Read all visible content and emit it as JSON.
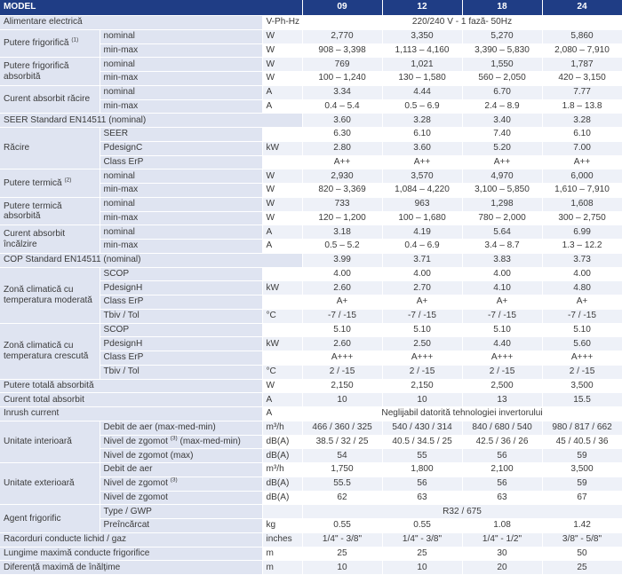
{
  "header": {
    "model": "MODEL",
    "units": [
      "09",
      "12",
      "18",
      "24"
    ]
  },
  "rows": [
    {
      "group": "Alimentare electrică",
      "sub": "",
      "unit": "V-Ph-Hz",
      "merged": "220/240 V - 1 fază- 50Hz"
    },
    {
      "group": "Putere frigorifică",
      "group_sup": "(1)",
      "sub": "nominal",
      "unit": "W",
      "values": [
        "2,770",
        "3,350",
        "5,270",
        "5,860"
      ]
    },
    {
      "sub": "min-max",
      "unit": "W",
      "values": [
        "908 – 3,398",
        "1,113 – 4,160",
        "3,390 – 5,830",
        "2,080 – 7,910"
      ]
    },
    {
      "group": "Putere frigorifică absorbită",
      "sub": "nominal",
      "unit": "W",
      "values": [
        "769",
        "1,021",
        "1,550",
        "1,787"
      ]
    },
    {
      "sub": "min-max",
      "unit": "W",
      "values": [
        "100 – 1,240",
        "130 – 1,580",
        "560 – 2,050",
        "420 – 3,150"
      ]
    },
    {
      "group": "Curent absorbit răcire",
      "sub": "nominal",
      "unit": "A",
      "values": [
        "3.34",
        "4.44",
        "6.70",
        "7.77"
      ]
    },
    {
      "sub": "min-max",
      "unit": "A",
      "values": [
        "0.4 – 5.4",
        "0.5 – 6.9",
        "2.4 – 8.9",
        "1.8 – 13.8"
      ]
    },
    {
      "group": "SEER Standard EN14511 (nominal)",
      "values": [
        "3.60",
        "3.28",
        "3.40",
        "3.28"
      ]
    },
    {
      "group": "Răcire",
      "sub": "SEER",
      "unit": "",
      "values": [
        "6.30",
        "6.10",
        "7.40",
        "6.10"
      ]
    },
    {
      "sub": "PdesignC",
      "unit": "kW",
      "values": [
        "2.80",
        "3.60",
        "5.20",
        "7.00"
      ]
    },
    {
      "sub": "Class ErP",
      "unit": "",
      "values": [
        "A++",
        "A++",
        "A++",
        "A++"
      ]
    },
    {
      "group": "Putere termică",
      "group_sup": "(2)",
      "sub": "nominal",
      "unit": "W",
      "values": [
        "2,930",
        "3,570",
        "4,970",
        "6,000"
      ]
    },
    {
      "sub": "min-max",
      "unit": "W",
      "values": [
        "820 – 3,369",
        "1,084 – 4,220",
        "3,100 – 5,850",
        "1,610 – 7,910"
      ]
    },
    {
      "group": "Putere termică absorbită",
      "sub": "nominal",
      "unit": "W",
      "values": [
        "733",
        "963",
        "1,298",
        "1,608"
      ]
    },
    {
      "sub": "min-max",
      "unit": "W",
      "values": [
        "120 – 1,200",
        "100 – 1,680",
        "780 – 2,000",
        "300 – 2,750"
      ]
    },
    {
      "group": "Curent absorbit încălzire",
      "sub": "nominal",
      "unit": "A",
      "values": [
        "3.18",
        "4.19",
        "5.64",
        "6.99"
      ]
    },
    {
      "sub": "min-max",
      "unit": "A",
      "values": [
        "0.5 – 5.2",
        "0.4 – 6.9",
        "3.4 – 8.7",
        "1.3 – 12.2"
      ]
    },
    {
      "group": "COP Standard EN14511 (nominal)",
      "values": [
        "3.99",
        "3.71",
        "3.83",
        "3.73"
      ]
    },
    {
      "group": "Zonă climatică cu temperatura moderată",
      "sub": "SCOP",
      "unit": "",
      "values": [
        "4.00",
        "4.00",
        "4.00",
        "4.00"
      ]
    },
    {
      "sub": "PdesignH",
      "unit": "kW",
      "values": [
        "2.60",
        "2.70",
        "4.10",
        "4.80"
      ]
    },
    {
      "sub": "Class ErP",
      "unit": "",
      "values": [
        "A+",
        "A+",
        "A+",
        "A+"
      ]
    },
    {
      "sub": "Tbiv / Tol",
      "unit": "°C",
      "values": [
        "-7 / -15",
        "-7 / -15",
        "-7 / -15",
        "-7 / -15"
      ]
    },
    {
      "group": "Zonă climatică cu temperatura crescută",
      "sub": "SCOP",
      "unit": "",
      "values": [
        "5.10",
        "5.10",
        "5.10",
        "5.10"
      ]
    },
    {
      "sub": "PdesignH",
      "unit": "kW",
      "values": [
        "2.60",
        "2.50",
        "4.40",
        "5.60"
      ]
    },
    {
      "sub": "Class ErP",
      "unit": "",
      "values": [
        "A+++",
        "A+++",
        "A+++",
        "A+++"
      ]
    },
    {
      "sub": "Tbiv / Tol",
      "unit": "°C",
      "values": [
        "2 / -15",
        "2 / -15",
        "2 / -15",
        "2 / -15"
      ]
    },
    {
      "group": "Putere totală absorbită",
      "unit": "W",
      "values": [
        "2,150",
        "2,150",
        "2,500",
        "3,500"
      ]
    },
    {
      "group": "Curent total absorbit",
      "unit": "A",
      "values": [
        "10",
        "10",
        "13",
        "15.5"
      ]
    },
    {
      "group": "Inrush current",
      "unit": "A",
      "merged": "Neglijabil datorită tehnologiei invertorului"
    },
    {
      "group": "Unitate interioară",
      "sub": "Debit de aer (max-med-min)",
      "unit": "m³/h",
      "values": [
        "466 / 360 / 325",
        "540 / 430 / 314",
        "840 / 680 / 540",
        "980 / 817 / 662"
      ]
    },
    {
      "sub": "Nivel de zgomot",
      "sub_sup": "(3)",
      "sub_after": "(max-med-min)",
      "unit": "dB(A)",
      "values": [
        "38.5 / 32 / 25",
        "40.5 / 34.5 / 25",
        "42.5 / 36 / 26",
        "45 / 40.5 / 36"
      ]
    },
    {
      "sub": "Nivel de zgomot (max)",
      "unit": "dB(A)",
      "values": [
        "54",
        "55",
        "56",
        "59"
      ]
    },
    {
      "group": "Unitate exterioară",
      "sub": "Debit de aer",
      "unit": "m³/h",
      "values": [
        "1,750",
        "1,800",
        "2,100",
        "3,500"
      ]
    },
    {
      "sub": "Nivel de zgomot",
      "sub_sup": "(3)",
      "unit": "dB(A)",
      "values": [
        "55.5",
        "56",
        "56",
        "59"
      ]
    },
    {
      "sub": "Nivel de zgomot",
      "unit": "dB(A)",
      "values": [
        "62",
        "63",
        "63",
        "67"
      ]
    },
    {
      "group": "Agent frigorific",
      "sub": "Type / GWP",
      "unit": "",
      "merged": "R32 / 675"
    },
    {
      "sub": "Preîncărcat",
      "unit": "kg",
      "values": [
        "0.55",
        "0.55",
        "1.08",
        "1.42"
      ]
    },
    {
      "group": "Racorduri conducte lichid / gaz",
      "unit": "inches",
      "values": [
        "1/4\" - 3/8\"",
        "1/4\" - 3/8\"",
        "1/4\" - 1/2\"",
        "3/8\" - 5/8\""
      ]
    },
    {
      "group": "Lungime maximă conducte frigorifice",
      "unit": "m",
      "values": [
        "25",
        "25",
        "30",
        "50"
      ]
    },
    {
      "group": "Diferență maximă de înălțime",
      "unit": "m",
      "values": [
        "10",
        "10",
        "20",
        "25"
      ]
    }
  ]
}
